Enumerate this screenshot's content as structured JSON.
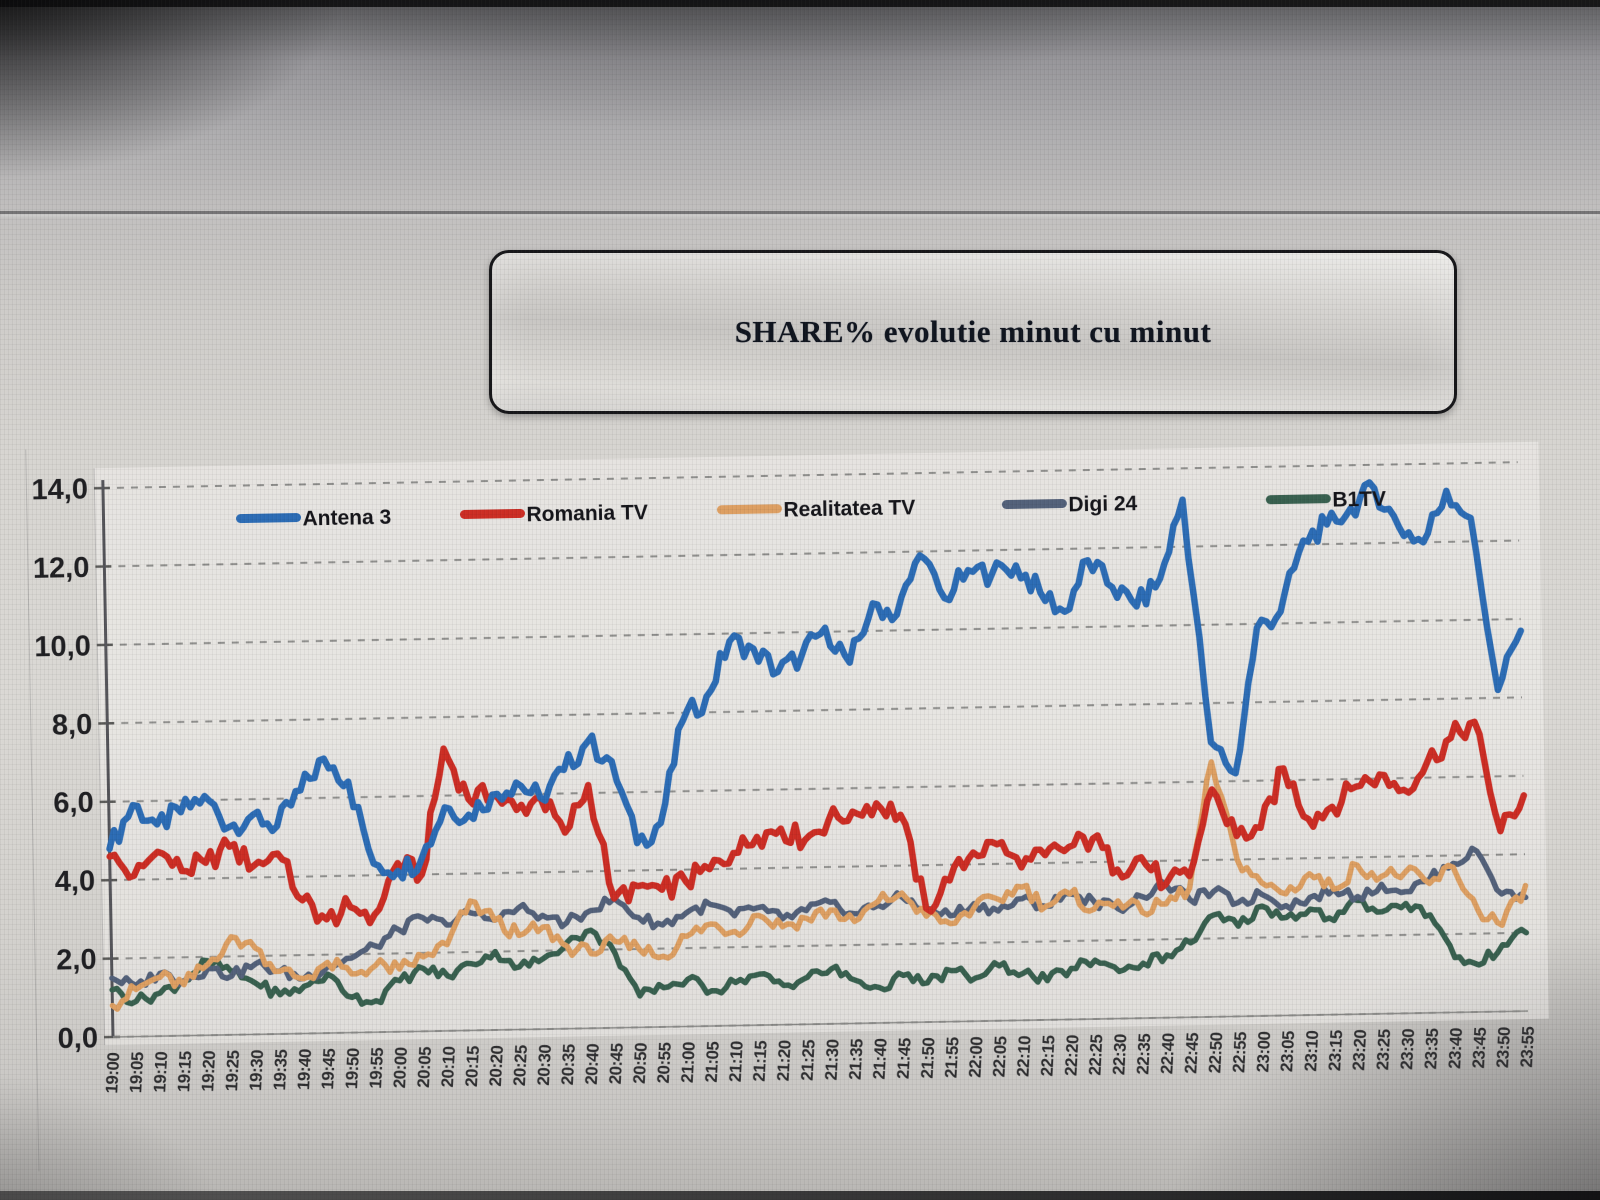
{
  "title": "SHARE% evolutie minut cu minut",
  "chart_data": {
    "type": "line",
    "title": "SHARE% evolutie minut cu minut",
    "ylim": [
      0,
      14
    ],
    "y_ticks": [
      0,
      2,
      4,
      6,
      8,
      10,
      12,
      14
    ],
    "y_tick_labels": [
      "0,0",
      "2,0",
      "4,0",
      "6,0",
      "8,0",
      "10,0",
      "12,0",
      "14,0"
    ],
    "grid": "horizontal-dashed",
    "legend_position": "top-inside",
    "x": [
      "19:00",
      "19:05",
      "19:10",
      "19:15",
      "19:20",
      "19:25",
      "19:30",
      "19:35",
      "19:40",
      "19:45",
      "19:50",
      "19:55",
      "20:00",
      "20:05",
      "20:10",
      "20:15",
      "20:20",
      "20:25",
      "20:30",
      "20:35",
      "20:40",
      "20:45",
      "20:50",
      "20:55",
      "21:00",
      "21:05",
      "21:10",
      "21:15",
      "21:20",
      "21:25",
      "21:30",
      "21:35",
      "21:40",
      "21:45",
      "21:50",
      "21:55",
      "22:00",
      "22:05",
      "22:10",
      "22:15",
      "22:20",
      "22:25",
      "22:30",
      "22:35",
      "22:40",
      "22:45",
      "22:50",
      "22:55",
      "23:00",
      "23:05",
      "23:10",
      "23:15",
      "23:20",
      "23:25",
      "23:30",
      "23:35",
      "23:40",
      "23:45",
      "23:50",
      "23:55"
    ],
    "series": [
      {
        "name": "Antena 3",
        "color": "#2c6cb5",
        "values": [
          4.8,
          5.9,
          5.4,
          5.7,
          6.1,
          5.3,
          5.6,
          5.3,
          6.2,
          7.0,
          6.4,
          4.3,
          4.1,
          4.4,
          5.7,
          5.5,
          6.0,
          6.3,
          5.9,
          6.6,
          7.3,
          6.8,
          4.7,
          5.2,
          7.8,
          8.4,
          9.8,
          9.6,
          9.0,
          9.4,
          10.1,
          9.2,
          10.7,
          10.4,
          11.9,
          10.8,
          11.5,
          11.4,
          11.6,
          10.9,
          10.4,
          11.7,
          11.0,
          10.5,
          11.2,
          13.2,
          7.0,
          6.2,
          9.9,
          10.3,
          12.1,
          12.5,
          12.9,
          13.4,
          12.4,
          12.0,
          13.3,
          12.6,
          8.2,
          9.7
        ]
      },
      {
        "name": "Romania TV",
        "color": "#cc2d24",
        "values": [
          4.6,
          4.1,
          4.7,
          4.2,
          4.4,
          4.8,
          4.3,
          4.6,
          3.4,
          2.9,
          3.2,
          3.0,
          4.3,
          4.0,
          7.2,
          5.9,
          6.0,
          5.6,
          5.9,
          5.0,
          6.2,
          3.3,
          3.6,
          3.5,
          3.7,
          4.0,
          4.4,
          4.8,
          5.0,
          4.7,
          5.2,
          5.4,
          5.6,
          5.3,
          2.9,
          3.6,
          4.3,
          4.5,
          3.9,
          4.2,
          4.4,
          4.6,
          3.8,
          4.1,
          3.4,
          3.6,
          5.8,
          4.6,
          4.8,
          6.3,
          5.0,
          5.3,
          5.8,
          6.1,
          5.7,
          6.4,
          7.0,
          7.4,
          4.6,
          5.5
        ]
      },
      {
        "name": "Realitatea TV",
        "color": "#dd9f62",
        "values": [
          0.8,
          1.2,
          1.5,
          1.3,
          1.8,
          2.5,
          2.2,
          1.6,
          1.4,
          1.8,
          1.5,
          1.7,
          1.6,
          1.9,
          2.2,
          3.3,
          2.8,
          2.4,
          2.6,
          2.1,
          1.9,
          2.2,
          2.0,
          1.8,
          2.3,
          2.6,
          2.4,
          2.8,
          2.5,
          2.7,
          2.9,
          2.6,
          3.1,
          3.3,
          2.7,
          2.5,
          2.9,
          3.1,
          3.4,
          2.9,
          3.2,
          2.8,
          3.0,
          2.7,
          2.9,
          3.3,
          6.5,
          4.0,
          3.4,
          3.1,
          3.6,
          3.2,
          3.8,
          3.5,
          3.6,
          3.3,
          3.7,
          2.6,
          2.2,
          3.2
        ]
      },
      {
        "name": "Digi 24",
        "color": "#53617a",
        "values": [
          1.5,
          1.3,
          1.6,
          1.4,
          1.7,
          1.5,
          1.8,
          1.6,
          1.4,
          1.7,
          1.9,
          2.2,
          2.6,
          2.9,
          2.7,
          3.0,
          2.8,
          3.1,
          2.9,
          2.7,
          3.0,
          3.3,
          2.8,
          2.6,
          2.9,
          3.1,
          2.8,
          3.0,
          2.7,
          2.9,
          3.1,
          2.8,
          3.0,
          3.2,
          2.9,
          2.7,
          3.0,
          2.8,
          3.1,
          2.9,
          3.2,
          3.0,
          2.8,
          3.1,
          3.4,
          3.0,
          3.2,
          2.9,
          3.1,
          2.8,
          3.0,
          3.2,
          3.0,
          3.3,
          3.1,
          3.4,
          3.8,
          4.1,
          3.0,
          2.9
        ]
      },
      {
        "name": "B1TV",
        "color": "#38604f",
        "values": [
          1.2,
          0.9,
          1.1,
          1.4,
          1.9,
          1.6,
          1.3,
          1.0,
          1.2,
          1.5,
          0.9,
          0.8,
          1.3,
          1.6,
          1.4,
          1.7,
          2.0,
          1.6,
          1.8,
          2.2,
          2.5,
          1.9,
          0.8,
          1.0,
          1.2,
          0.9,
          1.1,
          1.3,
          1.0,
          1.2,
          1.4,
          1.1,
          0.9,
          1.2,
          1.0,
          1.3,
          1.1,
          1.4,
          1.2,
          1.0,
          1.3,
          1.5,
          1.2,
          1.4,
          1.6,
          1.9,
          2.6,
          2.3,
          2.8,
          2.5,
          2.7,
          2.4,
          2.9,
          2.6,
          2.8,
          2.5,
          1.4,
          1.2,
          1.7,
          2.0
        ]
      }
    ]
  }
}
